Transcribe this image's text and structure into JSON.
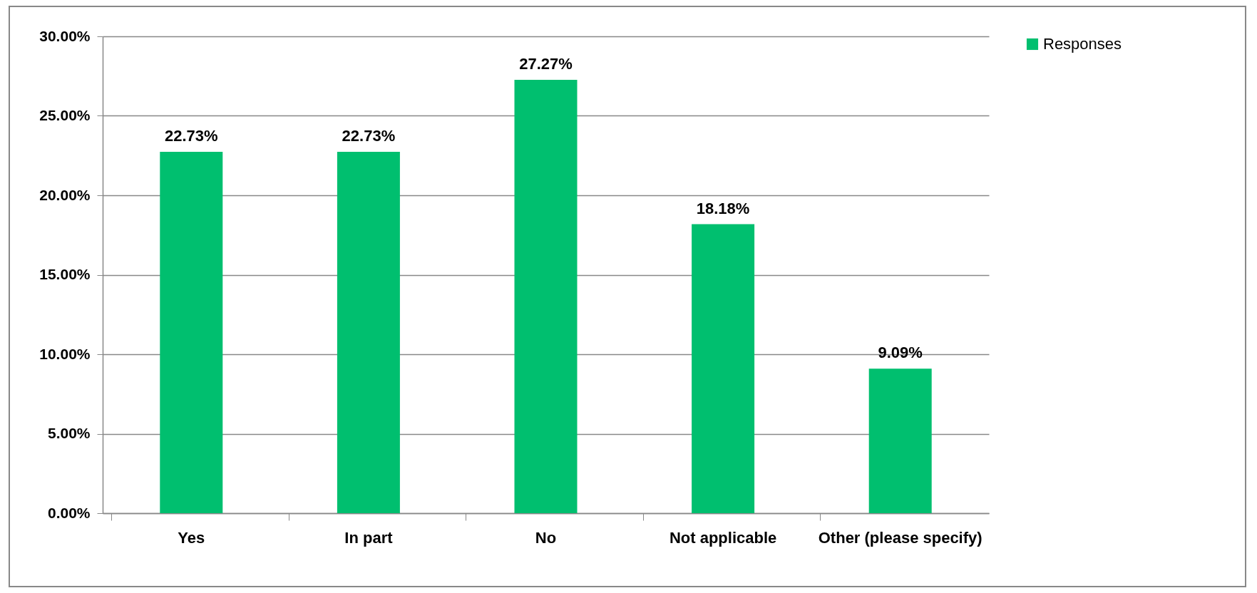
{
  "chart_data": {
    "type": "bar",
    "categories": [
      "Yes",
      "In part",
      "No",
      "Not applicable",
      "Other (please specify)"
    ],
    "series": [
      {
        "name": "Responses",
        "color": "#00bf6f",
        "values": [
          22.73,
          22.73,
          27.27,
          18.18,
          9.09
        ],
        "value_labels": [
          "22.73%",
          "22.73%",
          "27.27%",
          "18.18%",
          "9.09%"
        ]
      }
    ],
    "ylim": [
      0,
      30
    ],
    "yticks": [
      {
        "value": 0,
        "label": "0.00%"
      },
      {
        "value": 5,
        "label": "5.00%"
      },
      {
        "value": 10,
        "label": "10.00%"
      },
      {
        "value": 15,
        "label": "15.00%"
      },
      {
        "value": 20,
        "label": "20.00%"
      },
      {
        "value": 25,
        "label": "25.00%"
      },
      {
        "value": 30,
        "label": "30.00%"
      }
    ],
    "grid": "y",
    "legend": "right"
  }
}
